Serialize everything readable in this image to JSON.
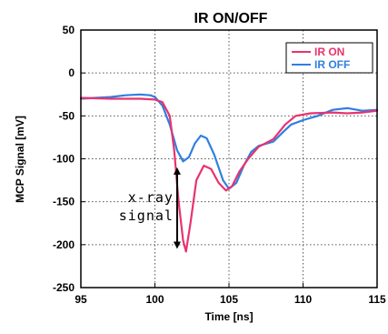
{
  "chart_data": {
    "type": "line",
    "title": "IR ON/OFF",
    "xlabel": "Time [ns]",
    "ylabel": "MCP Signal [mV]",
    "xlim": [
      95,
      115
    ],
    "ylim": [
      -250,
      50
    ],
    "xticks": [
      95,
      100,
      105,
      110,
      115
    ],
    "yticks": [
      50,
      0,
      -50,
      -100,
      -150,
      -200,
      -250
    ],
    "grid": true,
    "legend_position": "top-right",
    "series": [
      {
        "name": "IR ON",
        "color": "#e8336e",
        "points": [
          [
            95,
            -29
          ],
          [
            97,
            -30
          ],
          [
            99,
            -30
          ],
          [
            100,
            -31
          ],
          [
            100.5,
            -34
          ],
          [
            101,
            -50
          ],
          [
            101.3,
            -90
          ],
          [
            101.6,
            -150
          ],
          [
            101.9,
            -195
          ],
          [
            102.1,
            -208
          ],
          [
            102.4,
            -175
          ],
          [
            102.8,
            -125
          ],
          [
            103.3,
            -108
          ],
          [
            103.8,
            -112
          ],
          [
            104.3,
            -128
          ],
          [
            104.8,
            -137
          ],
          [
            105.2,
            -132
          ],
          [
            105.7,
            -115
          ],
          [
            106.3,
            -100
          ],
          [
            107,
            -86
          ],
          [
            108,
            -77
          ],
          [
            108.8,
            -60
          ],
          [
            109.5,
            -50
          ],
          [
            110.5,
            -47
          ],
          [
            112,
            -46
          ],
          [
            113,
            -47
          ],
          [
            114,
            -46
          ],
          [
            115,
            -44
          ]
        ]
      },
      {
        "name": "IR OFF",
        "color": "#2f7fe0",
        "points": [
          [
            95,
            -30
          ],
          [
            96,
            -29
          ],
          [
            97,
            -28
          ],
          [
            98,
            -26
          ],
          [
            99,
            -25
          ],
          [
            99.7,
            -26
          ],
          [
            100,
            -28
          ],
          [
            100.5,
            -38
          ],
          [
            101,
            -60
          ],
          [
            101.5,
            -90
          ],
          [
            101.9,
            -103
          ],
          [
            102.3,
            -98
          ],
          [
            102.7,
            -82
          ],
          [
            103.1,
            -73
          ],
          [
            103.5,
            -76
          ],
          [
            104,
            -95
          ],
          [
            104.6,
            -125
          ],
          [
            105,
            -135
          ],
          [
            105.5,
            -128
          ],
          [
            106,
            -108
          ],
          [
            106.5,
            -92
          ],
          [
            107,
            -85
          ],
          [
            108,
            -80
          ],
          [
            108.7,
            -68
          ],
          [
            109.2,
            -60
          ],
          [
            110,
            -55
          ],
          [
            111,
            -50
          ],
          [
            112,
            -43
          ],
          [
            113,
            -41
          ],
          [
            114,
            -44
          ],
          [
            115,
            -43
          ]
        ]
      }
    ],
    "annotation": {
      "lines": [
        "x-ray",
        "signal"
      ],
      "arrow_from": [
        101.5,
        -110
      ],
      "arrow_to": [
        101.5,
        -205
      ]
    }
  }
}
